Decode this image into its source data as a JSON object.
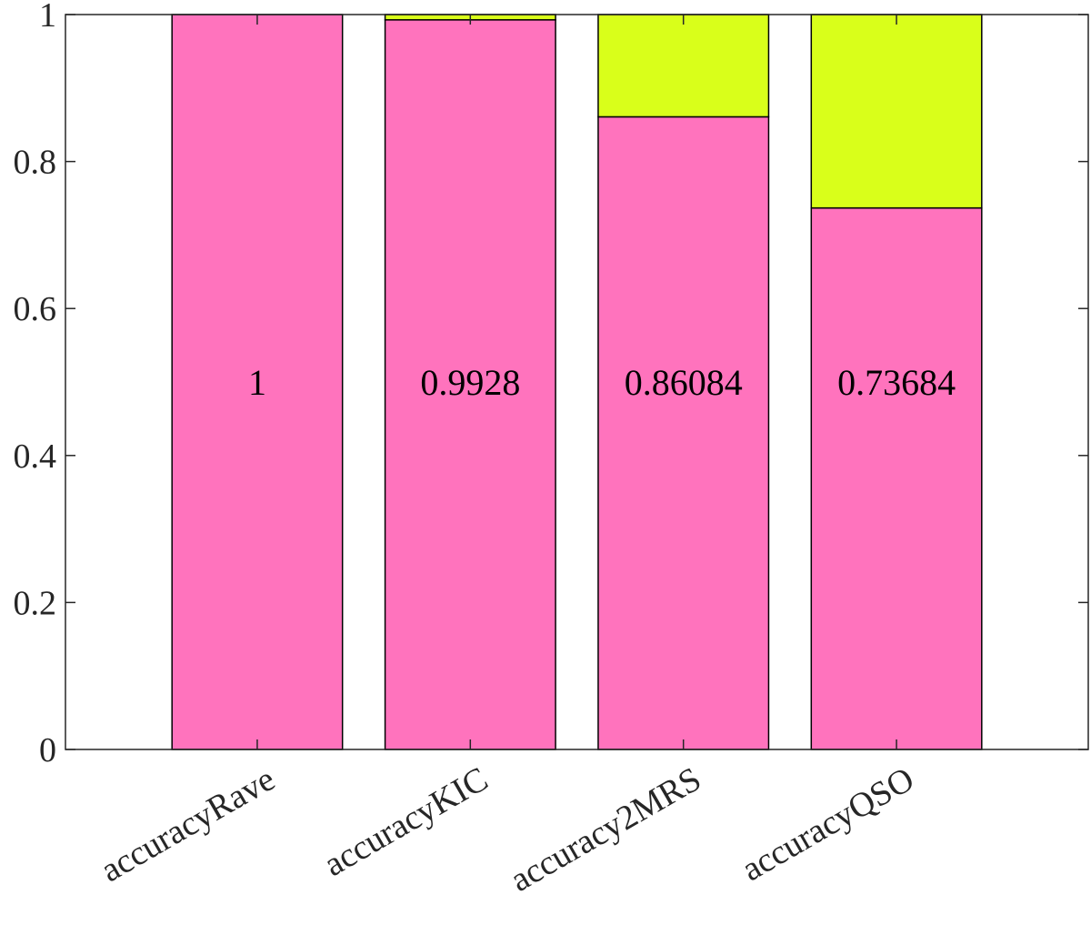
{
  "chart_data": {
    "type": "stacked_bar",
    "categories": [
      "accuracyRave",
      "accuracyKIC",
      "accuracy2MRS",
      "accuracyQSO"
    ],
    "series": [
      {
        "color": "#ff73bd",
        "values": [
          1,
          0.9928,
          0.86084,
          0.73684
        ]
      },
      {
        "color": "#d9ff1a",
        "values": [
          0,
          0.0072,
          0.13916,
          0.26316
        ]
      }
    ],
    "data_labels": true,
    "ylim": [
      0,
      1
    ],
    "yticks": [
      0,
      0.2,
      0.4,
      0.6,
      0.8,
      1
    ]
  }
}
